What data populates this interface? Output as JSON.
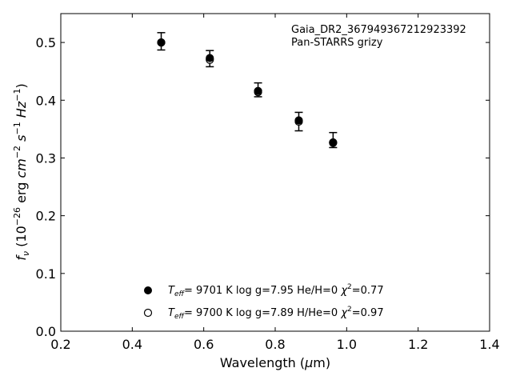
{
  "chart_data": {
    "type": "scatter",
    "xlabel": "Wavelength (μm)",
    "ylabel": "f_ν (10^-26 erg cm^-2 s^-1 Hz^-1)",
    "xlim": [
      0.2,
      1.4
    ],
    "ylim": [
      0.0,
      0.55
    ],
    "x_ticks": [
      "0.2",
      "0.4",
      "0.6",
      "0.8",
      "1.0",
      "1.2",
      "1.4"
    ],
    "y_ticks": [
      "0.0",
      "0.1",
      "0.2",
      "0.3",
      "0.4",
      "0.5"
    ],
    "annotation": {
      "source": "Gaia_DR2_367949367212923392",
      "survey": "Pan-STARRS grizy"
    },
    "observed": {
      "x": [
        0.481,
        0.617,
        0.752,
        0.866,
        0.962
      ],
      "y": [
        0.502,
        0.472,
        0.418,
        0.363,
        0.331
      ],
      "err": [
        0.015,
        0.014,
        0.012,
        0.016,
        0.013
      ]
    },
    "series": [
      {
        "name": "T_eff= 9701 K log g=7.95 He/H=0 χ²=0.77",
        "marker": "filled",
        "x": [
          0.481,
          0.617,
          0.752,
          0.866,
          0.962
        ],
        "y": [
          0.5,
          0.473,
          0.416,
          0.365,
          0.326
        ]
      },
      {
        "name": "T_eff= 9700 K log g=7.89 H/He=0 χ²=0.97",
        "marker": "open",
        "x": [
          0.481,
          0.617,
          0.752,
          0.866,
          0.962
        ],
        "y": [
          0.5,
          0.47,
          0.414,
          0.363,
          0.327
        ]
      }
    ],
    "legend_position": "bottom-center",
    "legend_entries": [
      {
        "teff_value": "9701 K",
        "params": "log g=7.95  He/H=0",
        "chi2": "=0.77"
      },
      {
        "teff_value": "9700 K",
        "params": "log g=7.89  H/He=0",
        "chi2": "=0.97"
      }
    ],
    "grid": false
  }
}
